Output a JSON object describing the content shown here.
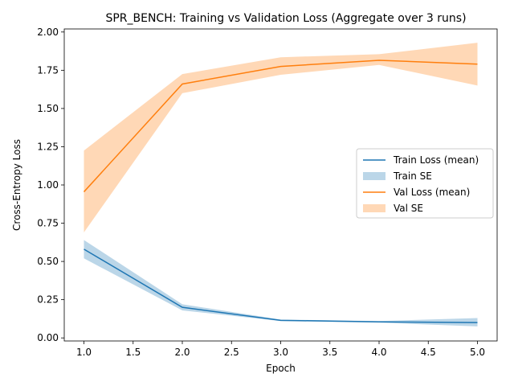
{
  "chart_data": {
    "type": "line",
    "title": "SPR_BENCH: Training vs Validation Loss (Aggregate over 3 runs)",
    "xlabel": "Epoch",
    "ylabel": "Cross-Entropy Loss",
    "x": [
      1,
      2,
      3,
      4,
      5
    ],
    "xlim": [
      0.8,
      5.2
    ],
    "ylim": [
      -0.02,
      2.02
    ],
    "xticks": [
      1.0,
      1.5,
      2.0,
      2.5,
      3.0,
      3.5,
      4.0,
      4.5,
      5.0
    ],
    "xtick_labels": [
      "1.0",
      "1.5",
      "2.0",
      "2.5",
      "3.0",
      "3.5",
      "4.0",
      "4.5",
      "5.0"
    ],
    "yticks": [
      0.0,
      0.25,
      0.5,
      0.75,
      1.0,
      1.25,
      1.5,
      1.75,
      2.0
    ],
    "ytick_labels": [
      "0.00",
      "0.25",
      "0.50",
      "0.75",
      "1.00",
      "1.25",
      "1.50",
      "1.75",
      "2.00"
    ],
    "grid": false,
    "legend_position": "center-right",
    "series": [
      {
        "name": "Train Loss (mean)",
        "band_name": "Train SE",
        "color": "#1f77b4",
        "band_color": "#1f77b4",
        "values": [
          0.58,
          0.2,
          0.115,
          0.105,
          0.1
        ],
        "lower": [
          0.52,
          0.18,
          0.11,
          0.1,
          0.075
        ],
        "upper": [
          0.64,
          0.22,
          0.12,
          0.11,
          0.13
        ]
      },
      {
        "name": "Val Loss (mean)",
        "band_name": "Val SE",
        "color": "#ff7f0e",
        "band_color": "#ff7f0e",
        "values": [
          0.955,
          1.66,
          1.775,
          1.815,
          1.79
        ],
        "lower": [
          0.69,
          1.6,
          1.72,
          1.785,
          1.65
        ],
        "upper": [
          1.225,
          1.725,
          1.835,
          1.855,
          1.93
        ]
      }
    ]
  }
}
